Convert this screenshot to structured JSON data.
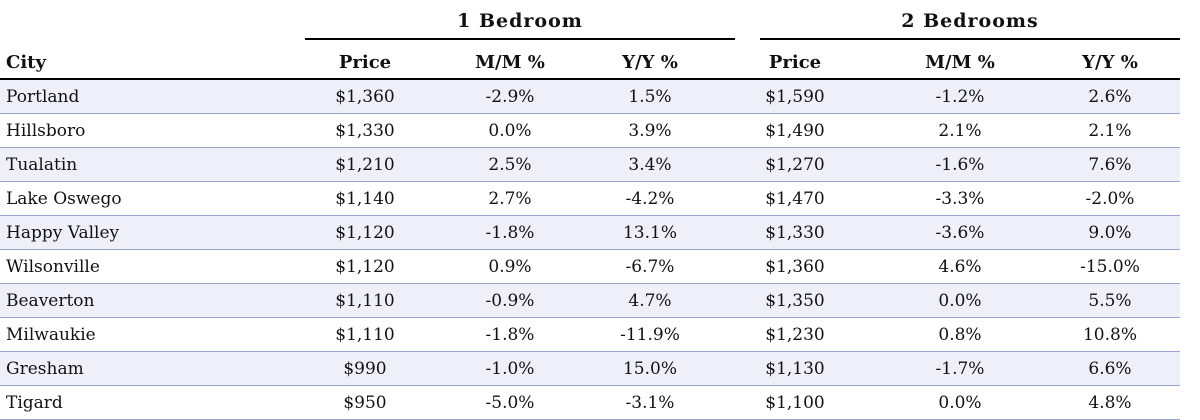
{
  "groups": {
    "one_bedroom": "1 Bedroom",
    "two_bedrooms": "2 Bedrooms"
  },
  "headers": {
    "city": "City",
    "price1": "Price",
    "mm1": "M/M %",
    "yy1": "Y/Y %",
    "price2": "Price",
    "mm2": "M/M %",
    "yy2": "Y/Y %"
  },
  "rows": [
    {
      "city": "Portland",
      "p1": "$1,360",
      "mm1": "-2.9%",
      "yy1": "1.5%",
      "p2": "$1,590",
      "mm2": "-1.2%",
      "yy2": "2.6%"
    },
    {
      "city": "Hillsboro",
      "p1": "$1,330",
      "mm1": "0.0%",
      "yy1": "3.9%",
      "p2": "$1,490",
      "mm2": "2.1%",
      "yy2": "2.1%"
    },
    {
      "city": "Tualatin",
      "p1": "$1,210",
      "mm1": "2.5%",
      "yy1": "3.4%",
      "p2": "$1,270",
      "mm2": "-1.6%",
      "yy2": "7.6%"
    },
    {
      "city": "Lake Oswego",
      "p1": "$1,140",
      "mm1": "2.7%",
      "yy1": "-4.2%",
      "p2": "$1,470",
      "mm2": "-3.3%",
      "yy2": "-2.0%"
    },
    {
      "city": "Happy Valley",
      "p1": "$1,120",
      "mm1": "-1.8%",
      "yy1": "13.1%",
      "p2": "$1,330",
      "mm2": "-3.6%",
      "yy2": "9.0%"
    },
    {
      "city": "Wilsonville",
      "p1": "$1,120",
      "mm1": "0.9%",
      "yy1": "-6.7%",
      "p2": "$1,360",
      "mm2": "4.6%",
      "yy2": "-15.0%"
    },
    {
      "city": "Beaverton",
      "p1": "$1,110",
      "mm1": "-0.9%",
      "yy1": "4.7%",
      "p2": "$1,350",
      "mm2": "0.0%",
      "yy2": "5.5%"
    },
    {
      "city": "Milwaukie",
      "p1": "$1,110",
      "mm1": "-1.8%",
      "yy1": "-11.9%",
      "p2": "$1,230",
      "mm2": "0.8%",
      "yy2": "10.8%"
    },
    {
      "city": "Gresham",
      "p1": "$990",
      "mm1": "-1.0%",
      "yy1": "15.0%",
      "p2": "$1,130",
      "mm2": "-1.7%",
      "yy2": "6.6%"
    },
    {
      "city": "Tigard",
      "p1": "$950",
      "mm1": "-5.0%",
      "yy1": "-3.1%",
      "p2": "$1,100",
      "mm2": "0.0%",
      "yy2": "4.8%"
    }
  ]
}
